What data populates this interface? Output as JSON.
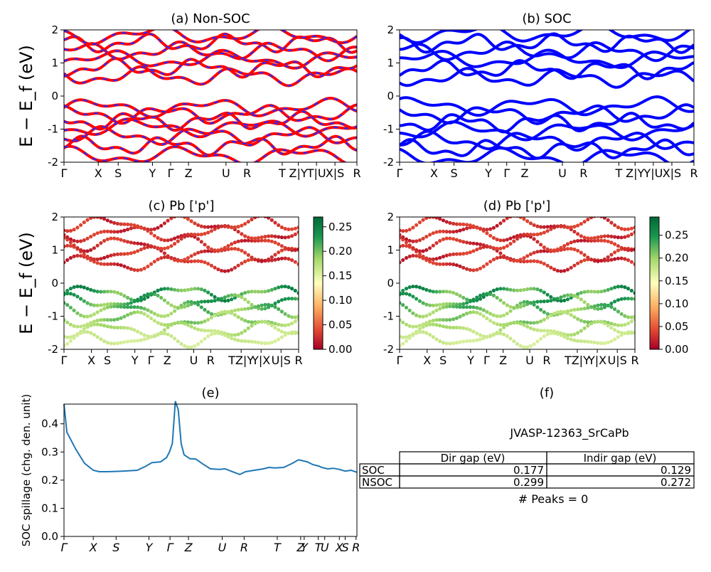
{
  "figure": {
    "material_id": "JVASP-12363_SrCaPb",
    "ylabel_energy": "E − E_f (eV)"
  },
  "chart_data": [
    {
      "id": "a",
      "type": "line",
      "title": "(a) Non-SOC",
      "ylim": [
        -2,
        2
      ],
      "yticks": [
        -2,
        -1,
        0,
        1,
        2
      ],
      "xtick_labels": [
        "Γ",
        "X",
        "S",
        "Y",
        "Γ",
        "Z",
        "U",
        "R",
        "T",
        "Z|Y",
        "T|U",
        "X|S",
        "R"
      ],
      "colors": {
        "primary": "#ff0000",
        "dash": "#2a2aff"
      },
      "bands_below": [
        -0.35,
        -0.55,
        -0.75,
        -0.95,
        -1.2,
        -1.5,
        -1.8
      ],
      "bands_above": [
        0.6,
        0.85,
        1.1,
        1.35,
        1.6,
        1.85
      ]
    },
    {
      "id": "b",
      "type": "line",
      "title": "(b) SOC",
      "ylim": [
        -2,
        2
      ],
      "yticks": [
        -2,
        -1,
        0,
        1,
        2
      ],
      "xtick_labels": [
        "Γ",
        "X",
        "S",
        "Y",
        "Γ",
        "Z",
        "U",
        "R",
        "T",
        "Z|Y",
        "Y|U",
        "X|S",
        "R"
      ],
      "colors": {
        "primary": "#0000ff"
      },
      "bands_below": [
        -0.3,
        -0.55,
        -0.8,
        -1.05,
        -1.35,
        -1.6,
        -1.85
      ],
      "bands_above": [
        0.55,
        0.8,
        1.1,
        1.35,
        1.6,
        1.9
      ]
    },
    {
      "id": "c",
      "type": "scatter",
      "title": "(c)  Pb ['p']",
      "ylim": [
        -2,
        2
      ],
      "yticks": [
        -2,
        -1,
        0,
        1,
        2
      ],
      "xtick_labels": [
        "Γ",
        "X",
        "S",
        "Y",
        "Γ",
        "Z",
        "U",
        "R",
        "TZ|Y",
        "Y|X",
        "U|S",
        "R"
      ],
      "colorbar": {
        "min": 0,
        "max": 0.27,
        "ticks": [
          "0.00",
          "0.05",
          "0.10",
          "0.15",
          "0.20",
          "0.25"
        ]
      }
    },
    {
      "id": "d",
      "type": "scatter",
      "title": "(d) Pb ['p']",
      "ylim": [
        -2,
        2
      ],
      "yticks": [
        -2,
        -1,
        0,
        1,
        2
      ],
      "xtick_labels": [
        "Γ",
        "X",
        "S",
        "Y",
        "Γ",
        "Z",
        "U",
        "R",
        "TZ|Y",
        "Y|X",
        "U|S",
        "R"
      ],
      "colorbar": {
        "min": 0,
        "max": 0.29,
        "ticks": [
          "0.00",
          "0.05",
          "0.10",
          "0.15",
          "0.20",
          "0.25"
        ]
      }
    },
    {
      "id": "e",
      "type": "line",
      "title": "(e)",
      "ylabel": "SOC spillage (chg. den. unit)",
      "ylim": [
        0,
        0.47
      ],
      "yticks": [
        "0.0",
        "0.1",
        "0.2",
        "0.3",
        "0.4"
      ],
      "xtick_labels": [
        "Γ",
        "X",
        "S",
        "Y",
        "Γ",
        "Z",
        "U",
        "R",
        "T",
        "Z",
        "Y",
        "T",
        "U",
        "X",
        "S",
        "R"
      ],
      "x": [
        0,
        0.01,
        0.04,
        0.07,
        0.1,
        0.12,
        0.15,
        0.2,
        0.25,
        0.28,
        0.3,
        0.33,
        0.35,
        0.36,
        0.37,
        0.38,
        0.39,
        0.4,
        0.41,
        0.43,
        0.45,
        0.47,
        0.5,
        0.53,
        0.55,
        0.57,
        0.6,
        0.62,
        0.65,
        0.68,
        0.7,
        0.72,
        0.75,
        0.78,
        0.8,
        0.81,
        0.83,
        0.85,
        0.87,
        0.88,
        0.9,
        0.92,
        0.94,
        0.96,
        0.98,
        1.0
      ],
      "y": [
        0.47,
        0.37,
        0.31,
        0.26,
        0.235,
        0.23,
        0.23,
        0.232,
        0.235,
        0.25,
        0.262,
        0.265,
        0.28,
        0.3,
        0.33,
        0.48,
        0.45,
        0.33,
        0.29,
        0.276,
        0.275,
        0.26,
        0.24,
        0.238,
        0.24,
        0.232,
        0.22,
        0.23,
        0.235,
        0.24,
        0.245,
        0.243,
        0.245,
        0.26,
        0.272,
        0.27,
        0.265,
        0.255,
        0.25,
        0.245,
        0.24,
        0.242,
        0.238,
        0.232,
        0.235,
        0.228
      ],
      "color": "#1f77b4"
    }
  ],
  "table": {
    "title": "(f)",
    "columns": [
      "",
      "Dir gap (eV)",
      "Indir gap (eV)"
    ],
    "rows": [
      {
        "label": "SOC",
        "dir": "0.177",
        "indir": "0.129"
      },
      {
        "label": "NSOC",
        "dir": "0.299",
        "indir": "0.272"
      }
    ],
    "peaks": "# Peaks = 0"
  }
}
